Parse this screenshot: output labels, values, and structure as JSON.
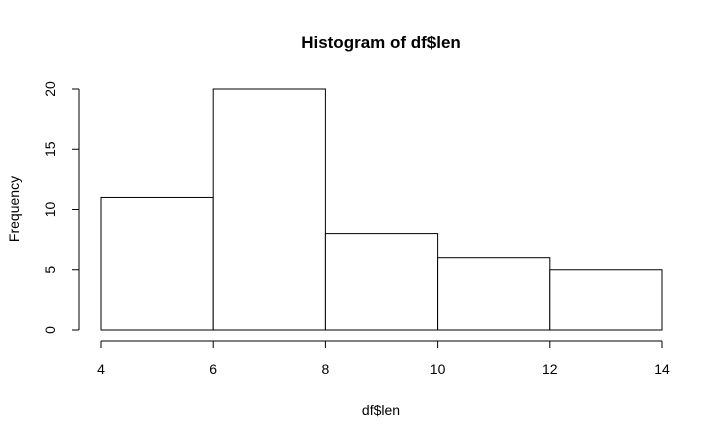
{
  "chart_data": {
    "type": "bar",
    "title": "Histogram of df$len",
    "xlabel": "df$len",
    "ylabel": "Frequency",
    "bins": [
      {
        "from": 4,
        "to": 6,
        "count": 11
      },
      {
        "from": 6,
        "to": 8,
        "count": 20
      },
      {
        "from": 8,
        "to": 10,
        "count": 8
      },
      {
        "from": 10,
        "to": 12,
        "count": 6
      },
      {
        "from": 12,
        "to": 14,
        "count": 5
      }
    ],
    "xlim": [
      4,
      14
    ],
    "ylim": [
      0,
      20
    ],
    "x_ticks": [
      4,
      6,
      8,
      10,
      12,
      14
    ],
    "y_ticks": [
      0,
      5,
      10,
      15,
      20
    ],
    "grid": false,
    "bar_fill": "#ffffff",
    "bar_stroke": "#000000"
  }
}
